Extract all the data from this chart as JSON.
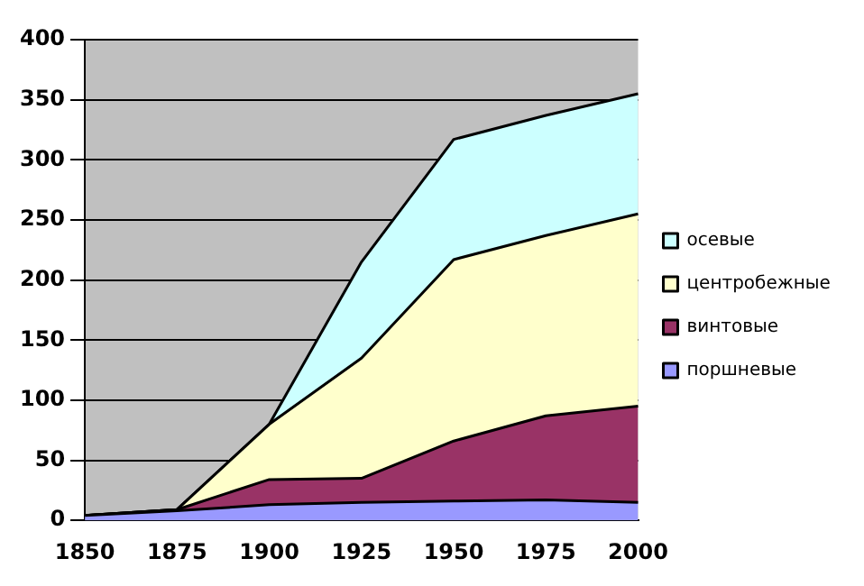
{
  "chart_data": {
    "type": "area",
    "stacked": true,
    "categories": [
      "1850",
      "1875",
      "1900",
      "1925",
      "1950",
      "1975",
      "2000"
    ],
    "series": [
      {
        "name": "поршневые",
        "color": "#9999ff",
        "values": [
          4,
          8,
          13,
          15,
          16,
          17,
          15
        ]
      },
      {
        "name": "винтовые",
        "color": "#993366",
        "values": [
          0,
          1,
          21,
          20,
          50,
          70,
          80
        ]
      },
      {
        "name": "центробежные",
        "color": "#ffffcc",
        "values": [
          0,
          0,
          46,
          100,
          151,
          150,
          160
        ]
      },
      {
        "name": "осевые",
        "color": "#ccffff",
        "values": [
          0,
          0,
          0,
          80,
          100,
          100,
          100
        ]
      }
    ],
    "ylim": [
      0,
      400
    ],
    "yticks": [
      0,
      50,
      100,
      150,
      200,
      250,
      300,
      350,
      400
    ],
    "grid": "y",
    "legend": "right"
  }
}
